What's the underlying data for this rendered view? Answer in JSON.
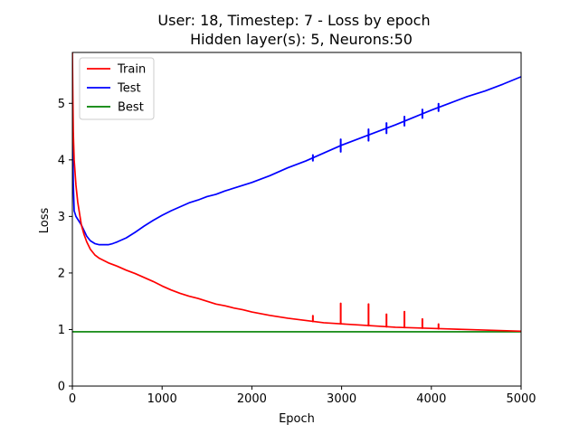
{
  "chart_data": {
    "type": "line",
    "title_line1": "User: 18, Timestep: 7 - Loss by epoch",
    "title_line2": "Hidden layer(s): 5, Neurons:50",
    "xlabel": "Epoch",
    "ylabel": "Loss",
    "xlim": [
      0,
      5000
    ],
    "ylim": [
      0,
      5.9
    ],
    "xticks": [
      0,
      1000,
      2000,
      3000,
      4000,
      5000
    ],
    "yticks": [
      0,
      1,
      2,
      3,
      4,
      5
    ],
    "grid": false,
    "legend_position": "top-left",
    "series": [
      {
        "name": "Train",
        "color": "#ff0000",
        "x": [
          0,
          5,
          10,
          20,
          40,
          60,
          80,
          100,
          130,
          160,
          200,
          250,
          300,
          350,
          400,
          500,
          600,
          700,
          800,
          900,
          1000,
          1100,
          1200,
          1300,
          1400,
          1500,
          1600,
          1700,
          1800,
          1900,
          2000,
          2200,
          2400,
          2600,
          2800,
          3000,
          3200,
          3400,
          3600,
          3800,
          4000,
          4200,
          4400,
          4600,
          4800,
          5000
        ],
        "y": [
          5.9,
          5.1,
          4.5,
          4.0,
          3.55,
          3.25,
          3.05,
          2.85,
          2.68,
          2.55,
          2.42,
          2.32,
          2.26,
          2.22,
          2.18,
          2.12,
          2.05,
          1.99,
          1.92,
          1.85,
          1.77,
          1.7,
          1.64,
          1.59,
          1.55,
          1.5,
          1.45,
          1.42,
          1.38,
          1.35,
          1.31,
          1.25,
          1.2,
          1.16,
          1.12,
          1.1,
          1.08,
          1.06,
          1.04,
          1.03,
          1.02,
          1.01,
          1.0,
          0.99,
          0.98,
          0.97
        ]
      },
      {
        "name": "Test",
        "color": "#0000ff",
        "x": [
          0,
          5,
          10,
          20,
          40,
          60,
          80,
          100,
          130,
          160,
          200,
          250,
          300,
          350,
          400,
          450,
          500,
          600,
          700,
          800,
          900,
          1000,
          1100,
          1200,
          1300,
          1400,
          1500,
          1600,
          1700,
          1800,
          1900,
          2000,
          2200,
          2400,
          2600,
          2800,
          3000,
          3200,
          3400,
          3600,
          3800,
          4000,
          4200,
          4400,
          4600,
          4800,
          5000
        ],
        "y": [
          5.0,
          4.3,
          3.6,
          3.1,
          3.0,
          2.95,
          2.9,
          2.85,
          2.75,
          2.65,
          2.57,
          2.52,
          2.5,
          2.5,
          2.5,
          2.52,
          2.55,
          2.62,
          2.72,
          2.83,
          2.93,
          3.02,
          3.1,
          3.17,
          3.24,
          3.29,
          3.35,
          3.39,
          3.45,
          3.5,
          3.55,
          3.6,
          3.72,
          3.86,
          3.98,
          4.12,
          4.26,
          4.38,
          4.5,
          4.62,
          4.75,
          4.88,
          5.0,
          5.12,
          5.22,
          5.34,
          5.47
        ]
      },
      {
        "name": "Best",
        "color": "#008000",
        "x": [
          0,
          5000
        ],
        "y": [
          0.96,
          0.96
        ]
      }
    ],
    "spikes": {
      "train": [
        [
          2680,
          0.1
        ],
        [
          2990,
          0.36
        ],
        [
          3300,
          0.38
        ],
        [
          3500,
          0.22
        ],
        [
          3700,
          0.28
        ],
        [
          3900,
          0.16
        ],
        [
          4080,
          0.08
        ]
      ],
      "test": [
        [
          2680,
          0.1
        ],
        [
          2990,
          0.22
        ],
        [
          3300,
          0.2
        ],
        [
          3500,
          0.18
        ],
        [
          3700,
          0.16
        ],
        [
          3900,
          0.15
        ],
        [
          4080,
          0.13
        ]
      ]
    }
  }
}
